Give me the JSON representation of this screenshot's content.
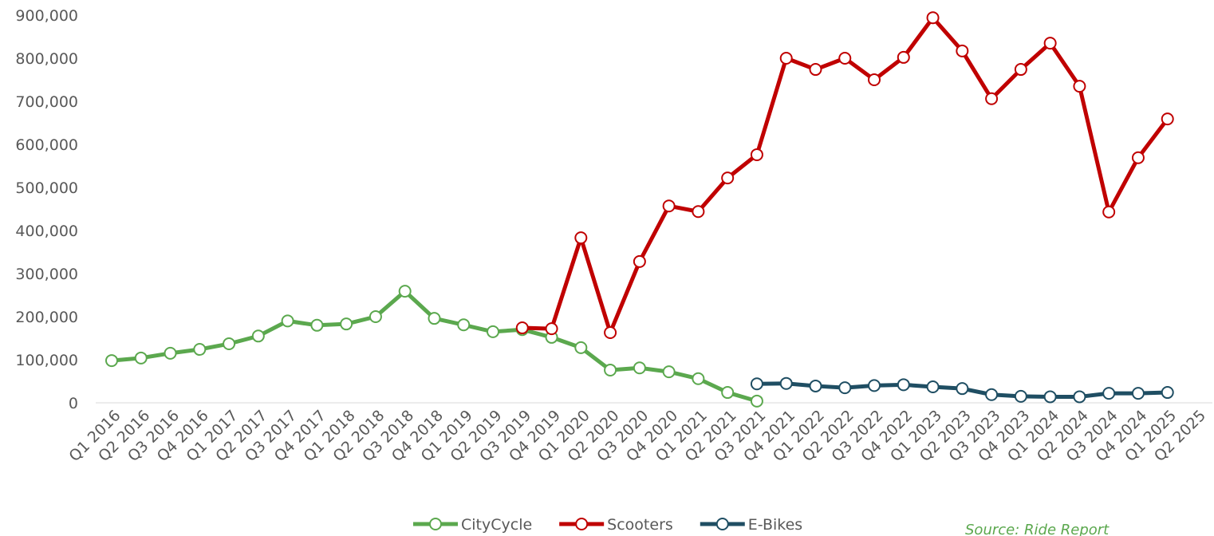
{
  "chart_data": {
    "type": "line",
    "categories": [
      "Q1 2016",
      "Q2 2016",
      "Q3 2016",
      "Q4 2016",
      "Q1 2017",
      "Q2 2017",
      "Q3 2017",
      "Q4 2017",
      "Q1 2018",
      "Q2 2018",
      "Q3 2018",
      "Q4 2018",
      "Q1 2019",
      "Q2 2019",
      "Q3 2019",
      "Q4 2019",
      "Q1 2020",
      "Q2 2020",
      "Q3 2020",
      "Q4 2020",
      "Q1 2021",
      "Q2 2021",
      "Q3 2021",
      "Q4 2021",
      "Q1 2022",
      "Q2 2022",
      "Q3 2022",
      "Q4 2022",
      "Q1 2023",
      "Q2 2023",
      "Q3 2023",
      "Q4 2023",
      "Q1 2024",
      "Q2 2024",
      "Q3 2024",
      "Q4 2024",
      "Q1 2025",
      "Q2 2025"
    ],
    "series": [
      {
        "name": "CityCycle",
        "color": "#5ba84e",
        "values": [
          98000,
          104000,
          115000,
          124000,
          137000,
          155000,
          190000,
          180000,
          183000,
          200000,
          259000,
          196000,
          181000,
          165000,
          170000,
          152000,
          128000,
          76000,
          81000,
          72000,
          56000,
          24000,
          4000,
          null,
          null,
          null,
          null,
          null,
          null,
          null,
          null,
          null,
          null,
          null,
          null,
          null,
          null,
          null
        ]
      },
      {
        "name": "Scooters",
        "color": "#c00000",
        "values": [
          null,
          null,
          null,
          null,
          null,
          null,
          null,
          null,
          null,
          null,
          null,
          null,
          null,
          null,
          174000,
          172000,
          383000,
          163000,
          328000,
          457000,
          444000,
          522000,
          576000,
          800000,
          774000,
          800000,
          750000,
          802000,
          894000,
          817000,
          706000,
          774000,
          835000,
          735000,
          443000,
          569000,
          659000,
          null
        ]
      },
      {
        "name": "E-Bikes",
        "color": "#1f4e63",
        "values": [
          null,
          null,
          null,
          null,
          null,
          null,
          null,
          null,
          null,
          null,
          null,
          null,
          null,
          null,
          null,
          null,
          null,
          null,
          null,
          null,
          null,
          null,
          44000,
          45000,
          39000,
          35000,
          40000,
          42000,
          37000,
          33000,
          19000,
          15000,
          14000,
          14000,
          22000,
          22000,
          24000,
          null
        ]
      }
    ],
    "ylim": [
      0,
      900000
    ],
    "yticks": [
      0,
      {
        "value": 100000,
        "label": "100,000"
      },
      {
        "value": 200000,
        "label": "200,000"
      },
      {
        "value": 300000,
        "label": "300,000"
      },
      {
        "value": 400000,
        "label": "400,000"
      },
      {
        "value": 500000,
        "label": "500,000"
      },
      {
        "value": 600000,
        "label": "600,000"
      },
      {
        "value": 700000,
        "label": "700,000"
      },
      {
        "value": 800000,
        "label": "800,000"
      },
      {
        "value": 900000,
        "label": "900,000"
      }
    ],
    "source": "Source: Ride Report"
  }
}
